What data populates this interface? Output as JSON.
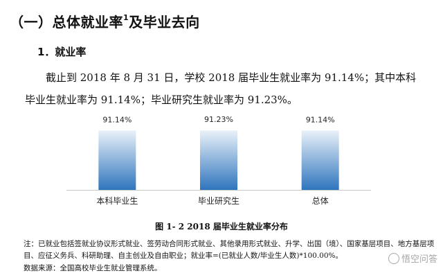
{
  "section_title": "（一）总体就业率",
  "section_title_sup": "1",
  "section_title_rest": "及毕业去向",
  "subsection_title": "1．就业率",
  "paragraph": "截止到 2018 年 8 月 31 日，学校 2018 届毕业生就业率为 91.14%；其中本科毕业生就业率为 91.14%；毕业研究生就业率为 91.23%。",
  "figure_caption": "图 1- 2    2018 届毕业生就业率分布",
  "note": "注：已就业包括签就业协议形式就业、签劳动合同形式就业、其他录用形式就业、升学、出国（境）、国家基层项目、地方基层项目、应征义务兵、科研助理、自主创业及自由职业；就业率=(已就业人数/毕业生人数)*100.00%。",
  "source": "数据来源：全国高校毕业生就业管理系统。",
  "watermark": "悟空问答",
  "colors": {
    "bar_top": "#e9f1f9",
    "bar_bottom": "#2f75bd",
    "axis": "#c8c8c8"
  },
  "chart_data": {
    "type": "bar",
    "categories": [
      "本科毕业生",
      "毕业研究生",
      "总体"
    ],
    "values": [
      91.14,
      91.23,
      91.14
    ],
    "value_labels": [
      "91.14%",
      "91.23%",
      "91.14%"
    ],
    "title": "",
    "xlabel": "",
    "ylabel": "",
    "ylim": [
      0,
      100
    ],
    "grid": false,
    "legend": "none"
  }
}
